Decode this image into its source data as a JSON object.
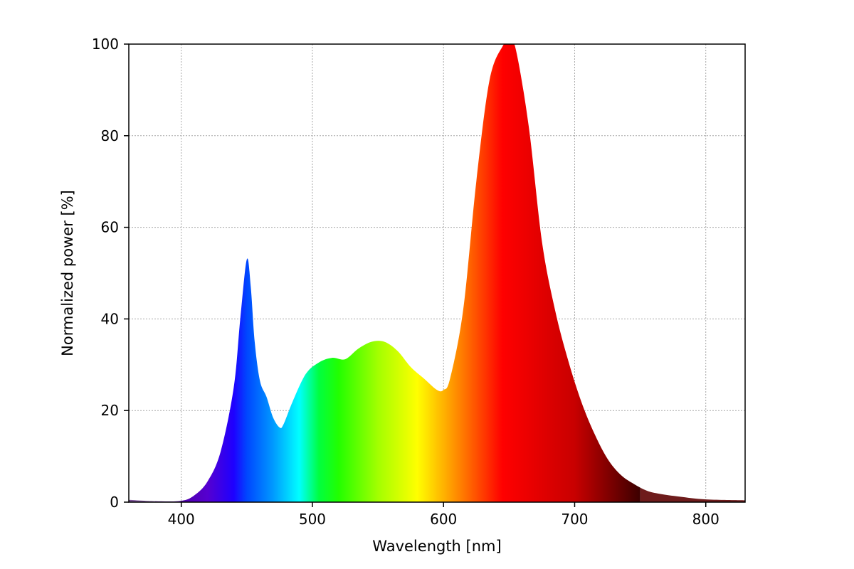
{
  "chart_data": {
    "type": "area",
    "title": "",
    "xlabel": "Wavelength [nm]",
    "ylabel": "Normalized power [%]",
    "xlim": [
      360,
      830
    ],
    "ylim": [
      0,
      100
    ],
    "xticks": [
      400,
      500,
      600,
      700,
      800
    ],
    "yticks": [
      0,
      20,
      40,
      60,
      80,
      100
    ],
    "grid": true,
    "legend": "none",
    "fill": "visible-spectrum gradient by wavelength; wavelengths above 750 nm filled dark red",
    "colors": {
      "spectrum_stops": [
        {
          "nm": 380,
          "color": "#4b0082"
        },
        {
          "nm": 420,
          "color": "#5500d0"
        },
        {
          "nm": 440,
          "color": "#1e00ff"
        },
        {
          "nm": 450,
          "color": "#0046ff"
        },
        {
          "nm": 470,
          "color": "#0099ff"
        },
        {
          "nm": 490,
          "color": "#00ffff"
        },
        {
          "nm": 505,
          "color": "#00ff40"
        },
        {
          "nm": 520,
          "color": "#22ff00"
        },
        {
          "nm": 550,
          "color": "#a3ff00"
        },
        {
          "nm": 580,
          "color": "#ffff00"
        },
        {
          "nm": 610,
          "color": "#ff8c00"
        },
        {
          "nm": 645,
          "color": "#ff0000"
        },
        {
          "nm": 700,
          "color": "#c80000"
        },
        {
          "nm": 750,
          "color": "#3c0000"
        }
      ],
      "infrared_fill": "#6e1c1c",
      "near_uv_fill": "#7a4f95"
    },
    "x": [
      360,
      380,
      400,
      410,
      420,
      430,
      440,
      445,
      450,
      453,
      456,
      460,
      465,
      470,
      475,
      478,
      485,
      495,
      505,
      515,
      525,
      535,
      545,
      555,
      565,
      575,
      585,
      595,
      600,
      605,
      615,
      625,
      635,
      645,
      650,
      655,
      665,
      675,
      685,
      695,
      705,
      715,
      725,
      735,
      745,
      755,
      765,
      780,
      800,
      830
    ],
    "y": [
      0.5,
      0.2,
      0.3,
      1.5,
      4.5,
      11,
      25,
      40,
      53,
      47,
      35,
      26.5,
      23,
      18.5,
      16.3,
      17,
      22,
      28,
      30.5,
      31.5,
      31.2,
      33.5,
      35,
      35,
      33,
      29.5,
      27,
      24.5,
      24.5,
      27,
      42,
      70,
      92,
      99.5,
      100,
      99,
      82,
      57,
      42,
      31,
      22,
      15,
      9.5,
      6,
      4,
      2.5,
      1.8,
      1.2,
      0.6,
      0.4
    ]
  }
}
